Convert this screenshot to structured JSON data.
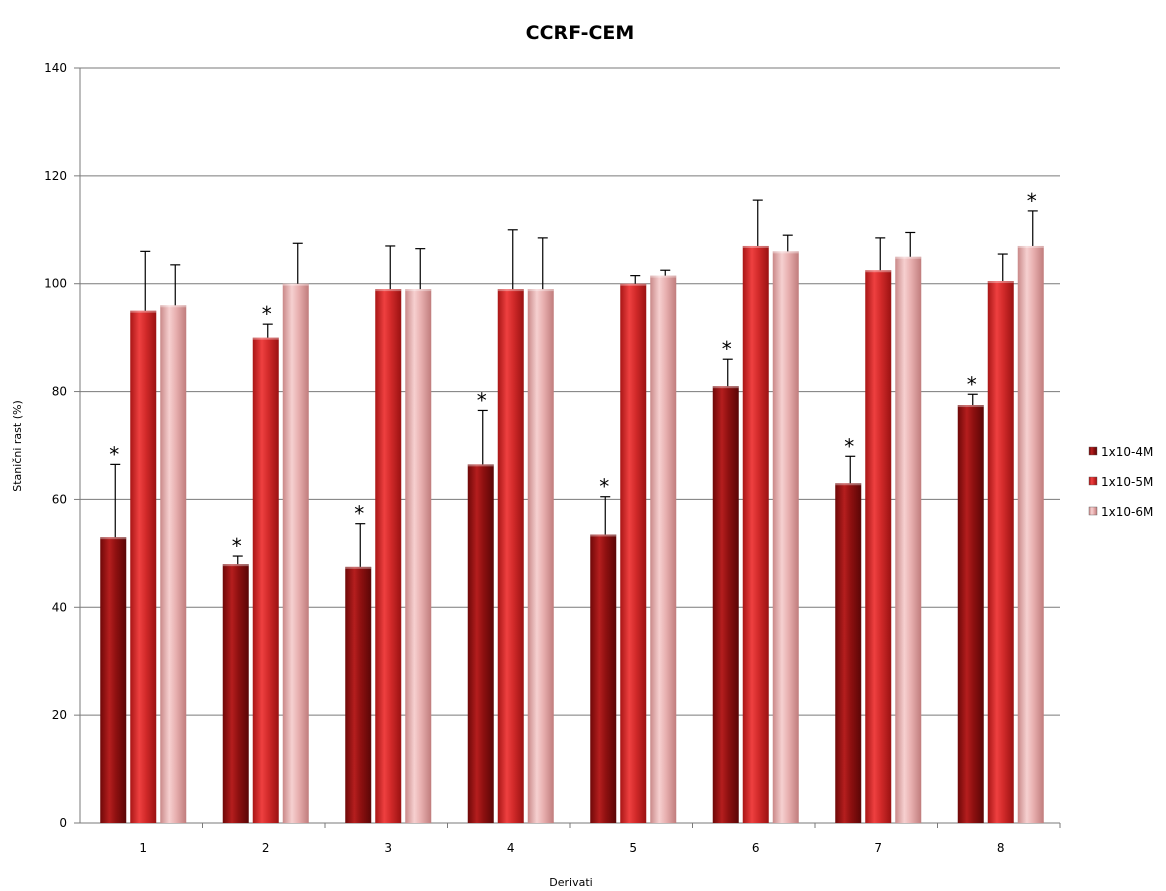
{
  "chart_data": {
    "type": "bar",
    "title": "CCRF-CEM",
    "xlabel": "Derivati",
    "ylabel": "Stanični rast (%)",
    "ylim": [
      0,
      140
    ],
    "yticks": [
      "0",
      "20",
      "40",
      "60",
      "80",
      "100",
      "120",
      "140"
    ],
    "categories": [
      "1",
      "2",
      "3",
      "4",
      "5",
      "6",
      "7",
      "8"
    ],
    "grid": true,
    "legend_position": "right",
    "significance_marker": "*",
    "series": [
      {
        "name": "1x10-4M",
        "color": "#9e1414",
        "values": [
          53,
          48,
          47.5,
          66.5,
          53.5,
          81,
          63,
          77.5
        ],
        "errors": [
          13.5,
          1.5,
          8,
          10,
          7,
          5,
          5,
          2
        ],
        "significant": [
          true,
          true,
          true,
          true,
          true,
          true,
          true,
          true
        ]
      },
      {
        "name": "1x10-5M",
        "color": "#d42b2b",
        "values": [
          95,
          90,
          99,
          99,
          100,
          107,
          102.5,
          100.5
        ],
        "errors": [
          11,
          2.5,
          8,
          11,
          1.5,
          8.5,
          6,
          5
        ],
        "significant": [
          false,
          true,
          false,
          false,
          false,
          false,
          false,
          false
        ]
      },
      {
        "name": "1x10-6M",
        "color": "#e6aaaa",
        "values": [
          96,
          100,
          99,
          99,
          101.5,
          106,
          105,
          107
        ],
        "errors": [
          7.5,
          7.5,
          7.5,
          9.5,
          1,
          3,
          4.5,
          6.5
        ],
        "significant": [
          false,
          false,
          false,
          false,
          false,
          false,
          false,
          true
        ]
      }
    ]
  }
}
